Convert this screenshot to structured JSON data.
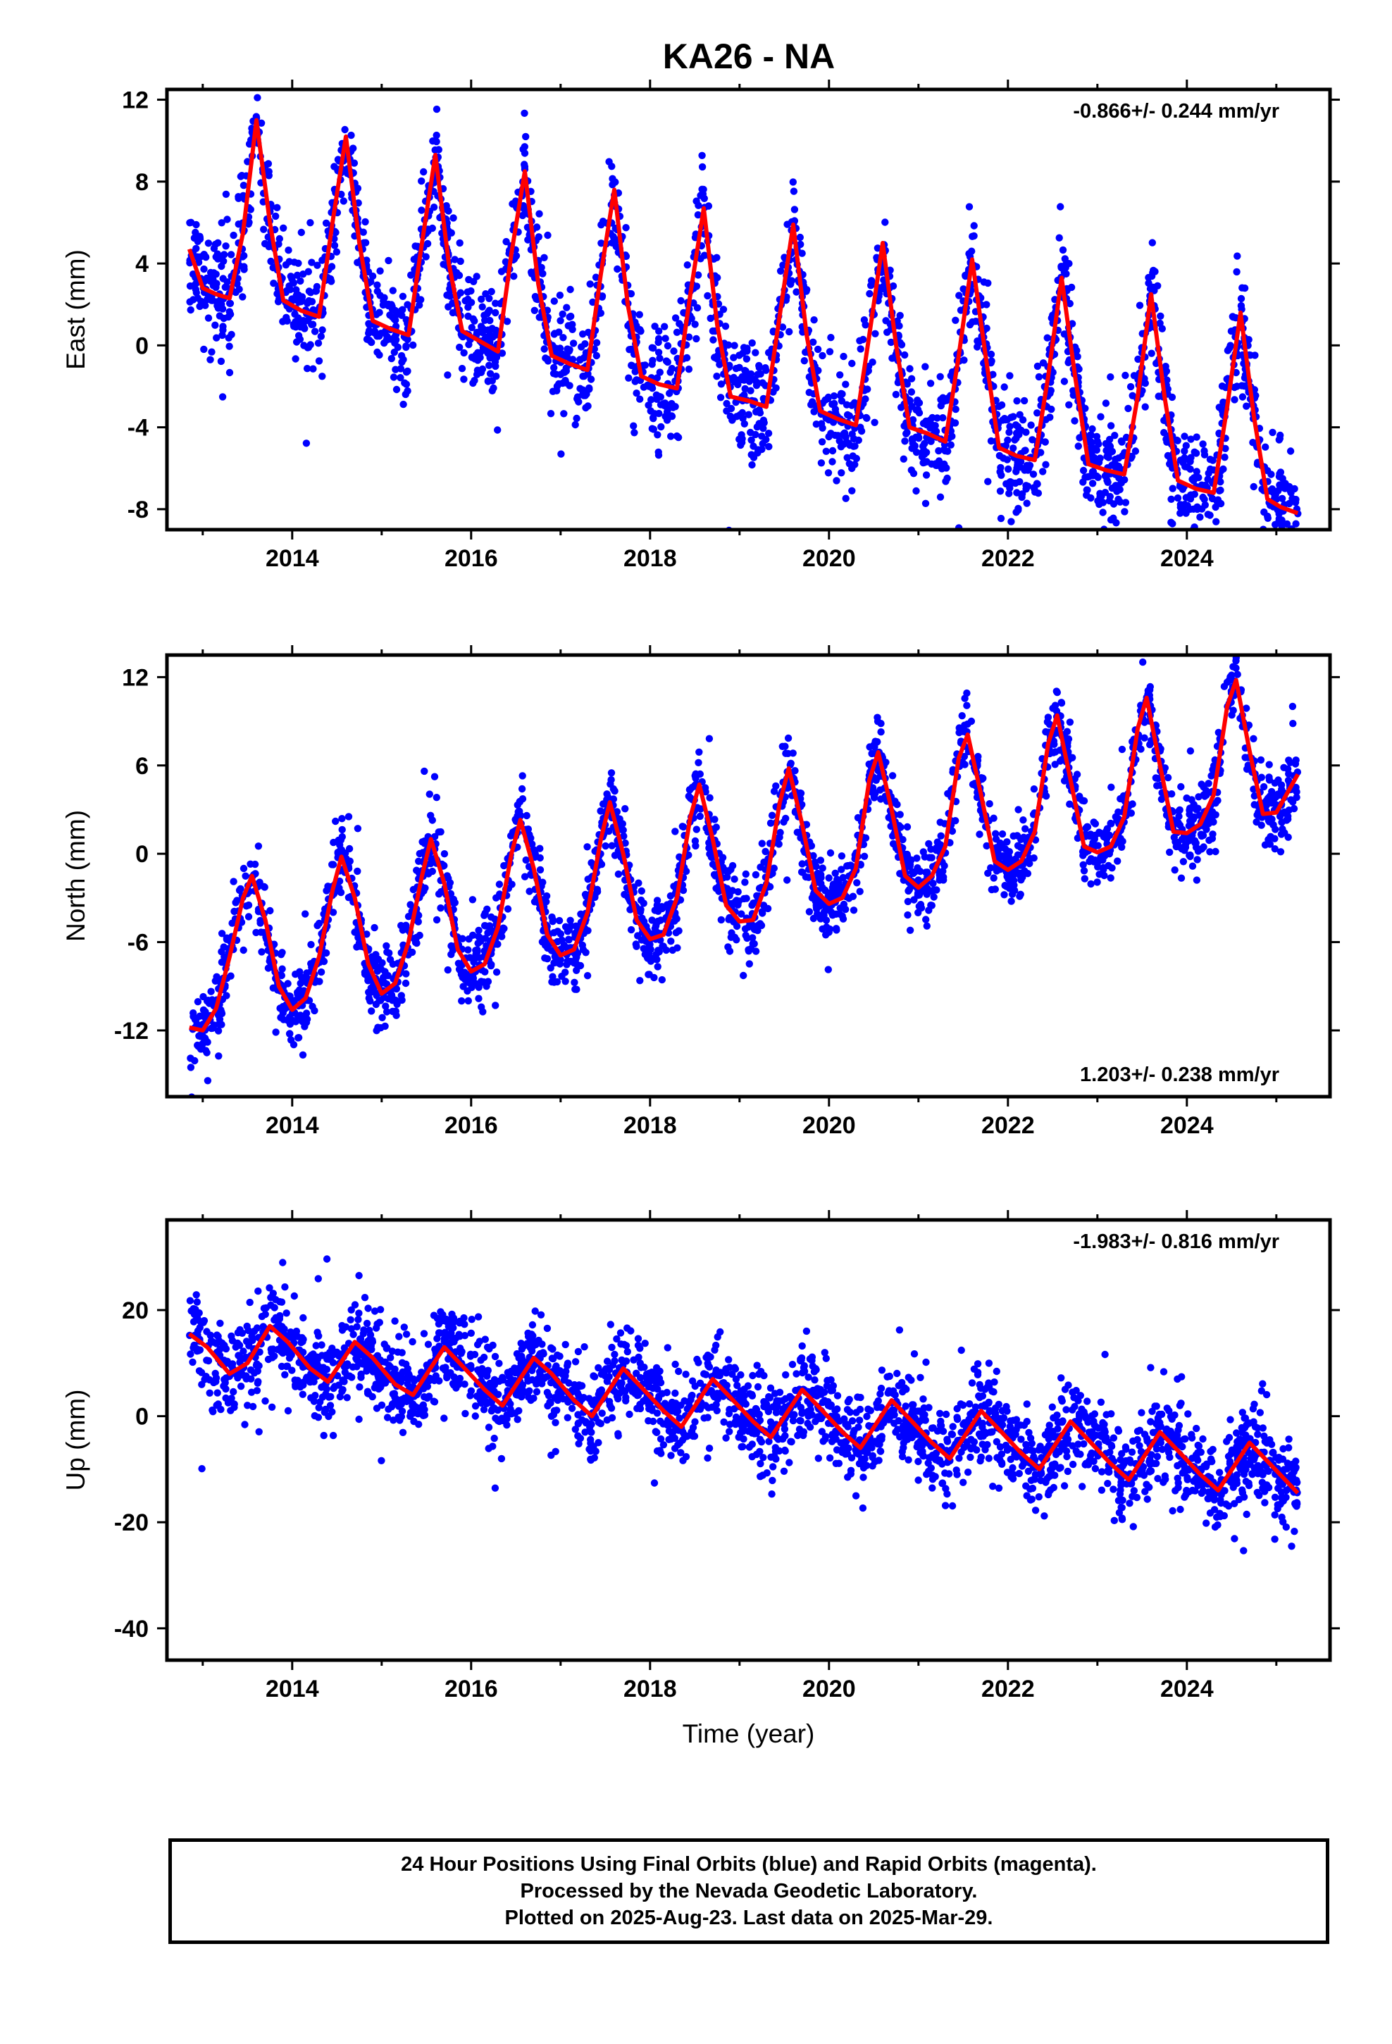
{
  "title": "KA26 - NA",
  "footer": {
    "line1": "24 Hour Positions Using Final Orbits (blue) and Rapid Orbits (magenta).",
    "line2": "Processed by the Nevada Geodetic Laboratory.",
    "line3": "Plotted on 2025-Aug-23. Last data on 2025-Mar-29."
  },
  "colors": {
    "data": "#0000ff",
    "model": "#ff0000",
    "axis": "#000000",
    "background": "#ffffff"
  },
  "chart_data": [
    {
      "type": "scatter",
      "panel": "east",
      "ylabel": "East (mm)",
      "xlabel": "",
      "rate": "-0.866+/- 0.244 mm/yr",
      "rate_position": "top-right",
      "xlim": [
        2012.6,
        2025.6
      ],
      "ylim": [
        -9,
        12.5
      ],
      "xticks": [
        2014,
        2016,
        2018,
        2020,
        2022,
        2024
      ],
      "yticks": [
        -8,
        -4,
        0,
        4,
        8,
        12
      ],
      "grid": false,
      "series": [
        {
          "kind": "points",
          "color": "#0000ff"
        },
        {
          "kind": "model_curve",
          "color": "#ff0000",
          "x": [
            2012.85,
            2013.0,
            2013.15,
            2013.3,
            2013.45,
            2013.6,
            2013.75,
            2013.9,
            2014.1,
            2014.3,
            2014.45,
            2014.6,
            2014.75,
            2014.9,
            2015.1,
            2015.3,
            2015.45,
            2015.6,
            2015.75,
            2015.9,
            2016.1,
            2016.3,
            2016.45,
            2016.6,
            2016.75,
            2016.9,
            2017.1,
            2017.3,
            2017.45,
            2017.6,
            2017.75,
            2017.9,
            2018.1,
            2018.3,
            2018.45,
            2018.6,
            2018.75,
            2018.9,
            2019.1,
            2019.3,
            2019.45,
            2019.6,
            2019.75,
            2019.9,
            2020.1,
            2020.3,
            2020.45,
            2020.6,
            2020.75,
            2020.9,
            2021.1,
            2021.3,
            2021.45,
            2021.6,
            2021.75,
            2021.9,
            2022.1,
            2022.3,
            2022.45,
            2022.6,
            2022.75,
            2022.9,
            2023.1,
            2023.3,
            2023.45,
            2023.6,
            2023.75,
            2023.9,
            2024.1,
            2024.3,
            2024.45,
            2024.6,
            2024.75,
            2024.9,
            2025.05,
            2025.24
          ],
          "y": [
            4.7,
            2.8,
            2.5,
            2.3,
            5.5,
            11.0,
            6.0,
            2.2,
            1.7,
            1.4,
            6.0,
            10.2,
            5.0,
            1.2,
            0.8,
            0.5,
            5.0,
            9.3,
            4.0,
            0.7,
            0.2,
            -0.3,
            4.5,
            8.5,
            3.0,
            -0.5,
            -0.9,
            -1.2,
            3.5,
            7.6,
            2.0,
            -1.5,
            -1.9,
            -2.1,
            2.5,
            6.7,
            1.0,
            -2.5,
            -2.7,
            -3.0,
            1.5,
            5.9,
            0.5,
            -3.2,
            -3.6,
            -3.9,
            0.5,
            5.0,
            0.0,
            -4.0,
            -4.3,
            -4.7,
            -0.5,
            4.2,
            -0.5,
            -5.0,
            -5.4,
            -5.6,
            -1.5,
            3.3,
            -1.5,
            -5.8,
            -6.1,
            -6.3,
            -2.5,
            2.5,
            -2.5,
            -6.6,
            -7.0,
            -7.2,
            -3.0,
            1.6,
            -3.5,
            -7.5,
            -7.9,
            -8.2
          ]
        }
      ]
    },
    {
      "type": "scatter",
      "panel": "north",
      "ylabel": "North (mm)",
      "xlabel": "",
      "rate": "1.203+/- 0.238 mm/yr",
      "rate_position": "bottom-right",
      "xlim": [
        2012.6,
        2025.6
      ],
      "ylim": [
        -16.5,
        13.5
      ],
      "xticks": [
        2014,
        2016,
        2018,
        2020,
        2022,
        2024
      ],
      "yticks": [
        -12,
        -6,
        0,
        6,
        12
      ],
      "grid": false,
      "series": [
        {
          "kind": "points",
          "color": "#0000ff"
        },
        {
          "kind": "model_curve",
          "color": "#ff0000",
          "x": [
            2012.85,
            2013.0,
            2013.15,
            2013.3,
            2013.45,
            2013.55,
            2013.7,
            2013.85,
            2014.0,
            2014.15,
            2014.3,
            2014.45,
            2014.55,
            2014.7,
            2014.85,
            2015.0,
            2015.15,
            2015.3,
            2015.45,
            2015.55,
            2015.7,
            2015.85,
            2016.0,
            2016.15,
            2016.3,
            2016.45,
            2016.55,
            2016.7,
            2016.85,
            2017.0,
            2017.15,
            2017.3,
            2017.45,
            2017.55,
            2017.7,
            2017.85,
            2018.0,
            2018.15,
            2018.3,
            2018.45,
            2018.55,
            2018.7,
            2018.85,
            2019.0,
            2019.15,
            2019.3,
            2019.45,
            2019.55,
            2019.7,
            2019.85,
            2020.0,
            2020.15,
            2020.3,
            2020.45,
            2020.55,
            2020.7,
            2020.85,
            2021.0,
            2021.15,
            2021.3,
            2021.45,
            2021.55,
            2021.7,
            2021.85,
            2022.0,
            2022.15,
            2022.3,
            2022.45,
            2022.55,
            2022.7,
            2022.85,
            2023.0,
            2023.15,
            2023.3,
            2023.45,
            2023.55,
            2023.7,
            2023.85,
            2024.0,
            2024.15,
            2024.3,
            2024.45,
            2024.55,
            2024.7,
            2024.85,
            2025.0,
            2025.24
          ],
          "y": [
            -11.8,
            -12.0,
            -10.5,
            -7.0,
            -3.0,
            -1.5,
            -4.5,
            -9.0,
            -10.6,
            -9.8,
            -7.0,
            -2.5,
            -0.2,
            -3.0,
            -7.5,
            -9.5,
            -8.8,
            -6.0,
            -1.5,
            1.0,
            -2.0,
            -6.5,
            -8.0,
            -7.5,
            -5.0,
            0.0,
            2.3,
            -1.0,
            -5.5,
            -6.9,
            -6.5,
            -4.0,
            1.0,
            3.5,
            0.0,
            -4.5,
            -5.8,
            -5.5,
            -3.0,
            2.5,
            4.7,
            1.0,
            -3.5,
            -4.6,
            -4.5,
            -2.0,
            3.5,
            5.8,
            2.0,
            -2.5,
            -3.4,
            -3.0,
            -1.0,
            5.0,
            6.9,
            3.0,
            -1.5,
            -2.3,
            -1.5,
            0.5,
            6.5,
            8.1,
            4.0,
            -0.5,
            -1.1,
            -0.5,
            1.5,
            7.5,
            9.4,
            5.0,
            0.5,
            0.1,
            0.5,
            2.5,
            8.5,
            10.6,
            6.0,
            1.5,
            1.4,
            2.0,
            4.0,
            10.0,
            11.8,
            7.0,
            2.7,
            2.8,
            5.4
          ]
        }
      ]
    },
    {
      "type": "scatter",
      "panel": "up",
      "ylabel": "Up (mm)",
      "xlabel": "Time (year)",
      "rate": "-1.983+/- 0.816 mm/yr",
      "rate_position": "top-right",
      "xlim": [
        2012.6,
        2025.6
      ],
      "ylim": [
        -46,
        37
      ],
      "xticks": [
        2014,
        2016,
        2018,
        2020,
        2022,
        2024
      ],
      "yticks": [
        -40,
        -20,
        0,
        20
      ],
      "grid": false,
      "series": [
        {
          "kind": "points",
          "color": "#0000ff"
        },
        {
          "kind": "model_curve",
          "color": "#ff0000",
          "x": [
            2012.85,
            2013.05,
            2013.3,
            2013.5,
            2013.75,
            2013.95,
            2014.2,
            2014.4,
            2014.7,
            2014.9,
            2015.15,
            2015.35,
            2015.7,
            2015.9,
            2016.15,
            2016.35,
            2016.7,
            2016.9,
            2017.15,
            2017.35,
            2017.7,
            2017.9,
            2018.15,
            2018.35,
            2018.7,
            2018.9,
            2019.15,
            2019.35,
            2019.7,
            2019.9,
            2020.15,
            2020.35,
            2020.7,
            2020.9,
            2021.15,
            2021.35,
            2021.7,
            2021.9,
            2022.15,
            2022.35,
            2022.7,
            2022.9,
            2023.15,
            2023.35,
            2023.7,
            2023.9,
            2024.15,
            2024.35,
            2024.7,
            2024.9,
            2025.24
          ],
          "y": [
            15.5,
            13.0,
            8.0,
            10.0,
            17.0,
            14.0,
            9.0,
            6.5,
            14.0,
            11.0,
            6.0,
            4.0,
            13.0,
            9.5,
            5.0,
            2.0,
            11.0,
            8.0,
            3.0,
            0.0,
            9.0,
            5.5,
            1.0,
            -2.0,
            7.0,
            3.5,
            -1.0,
            -4.0,
            5.0,
            1.5,
            -3.0,
            -6.0,
            3.0,
            -0.5,
            -5.0,
            -8.0,
            1.0,
            -2.5,
            -7.0,
            -10.0,
            -1.0,
            -4.5,
            -9.0,
            -12.0,
            -3.0,
            -6.5,
            -11.0,
            -14.0,
            -5.0,
            -8.5,
            -14.5
          ]
        }
      ]
    }
  ]
}
